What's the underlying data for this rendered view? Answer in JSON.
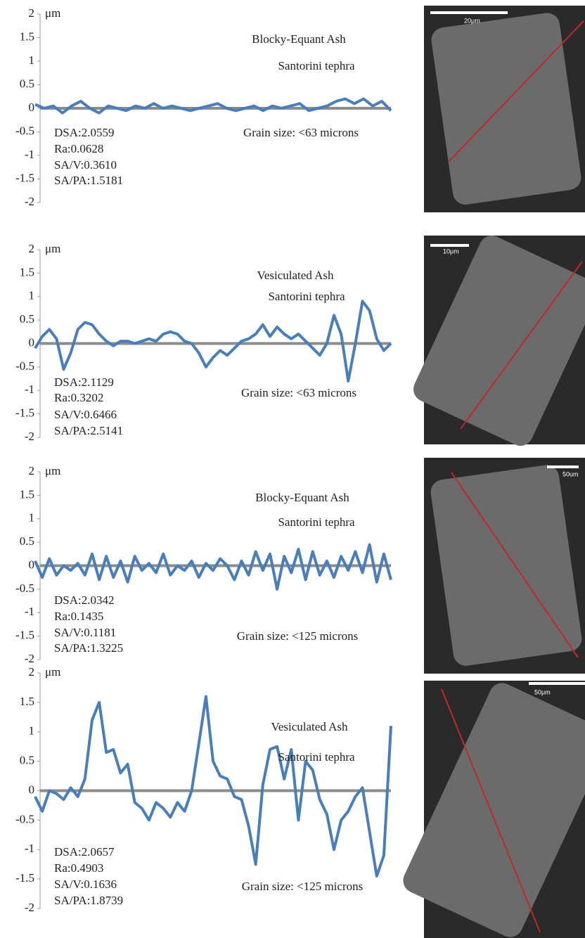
{
  "chart_data": [
    {
      "type": "line",
      "y_label": "μm",
      "title_lines": [
        "Blocky-Equant Ash",
        "Santorini tephra"
      ],
      "stats": [
        "DSA:2.0559",
        "Ra:0.0628",
        "SA/V:0.3610",
        "SA/PA:1.5181"
      ],
      "grain_size": "Grain size: <63 microns",
      "scale_label": "20μm",
      "color": "#4a7ebb",
      "ylim": [
        -2,
        2
      ],
      "yticks": [
        -2,
        -1.5,
        -1,
        -0.5,
        0,
        0.5,
        1,
        1.5,
        2
      ],
      "values": [
        0.08,
        0,
        0.05,
        -0.1,
        0.05,
        0.15,
        0,
        -0.1,
        0.05,
        0,
        -0.05,
        0.05,
        0,
        0.1,
        0,
        0.05,
        0,
        -0.05,
        0,
        0.05,
        0.1,
        0,
        -0.05,
        0,
        0.05,
        -0.05,
        0.05,
        0,
        0.05,
        0.1,
        -0.05,
        0,
        0.05,
        0.15,
        0.2,
        0.1,
        0.2,
        0.05,
        0.15,
        -0.05
      ]
    },
    {
      "type": "line",
      "y_label": "μm",
      "title_lines": [
        "Vesiculated Ash",
        "Santorini tephra"
      ],
      "stats": [
        "DSA:2.1129",
        "Ra:0.3202",
        "SA/V:0.6466",
        "SA/PA:2.5141"
      ],
      "grain_size": "Grain size: <63 microns",
      "scale_label": "10μm",
      "color": "#4a7ebb",
      "ylim": [
        -2,
        2
      ],
      "yticks": [
        -2,
        -1.5,
        -1,
        -0.5,
        0,
        0.5,
        1,
        1.5,
        2
      ],
      "values": [
        -0.1,
        0.15,
        0.3,
        0.1,
        -0.55,
        -0.2,
        0.3,
        0.45,
        0.4,
        0.2,
        0.05,
        -0.05,
        0.05,
        0.05,
        0,
        0.05,
        0.1,
        0.05,
        0.2,
        0.25,
        0.2,
        0.05,
        0,
        -0.2,
        -0.5,
        -0.3,
        -0.15,
        -0.25,
        -0.1,
        0.05,
        0.1,
        0.2,
        0.4,
        0.15,
        0.35,
        0.2,
        0.1,
        0.2,
        0.05,
        -0.1,
        -0.25,
        0,
        0.6,
        0.2,
        -0.8,
        0,
        0.9,
        0.7,
        0.1,
        -0.15,
        0
      ]
    },
    {
      "type": "line",
      "y_label": "μm",
      "title_lines": [
        "Blocky-Equant Ash",
        "Santorini tephra"
      ],
      "stats": [
        "DSA:2.0342",
        "Ra:0.1435",
        "SA/V:0.1181",
        "SA/PA:1.3225"
      ],
      "grain_size": "Grain size: <125 microns",
      "scale_label": "50um",
      "color": "#4a7ebb",
      "ylim": [
        -2,
        2
      ],
      "yticks": [
        -2,
        -1.5,
        -1,
        -0.5,
        0,
        0.5,
        1,
        1.5,
        2
      ],
      "values": [
        0.1,
        -0.25,
        0.15,
        -0.2,
        0,
        -0.1,
        0.05,
        -0.2,
        0.25,
        -0.3,
        0.2,
        -0.25,
        0.1,
        -0.35,
        0.2,
        -0.1,
        0.05,
        -0.15,
        0.25,
        -0.2,
        0,
        -0.1,
        0.1,
        -0.25,
        0.05,
        -0.1,
        0.15,
        0,
        -0.3,
        0.1,
        -0.2,
        0.3,
        -0.1,
        0.25,
        -0.5,
        0.2,
        -0.15,
        0.35,
        -0.3,
        0.3,
        -0.2,
        0.1,
        -0.25,
        0.2,
        -0.1,
        0.3,
        -0.15,
        0.45,
        -0.35,
        0.25,
        -0.3
      ]
    },
    {
      "type": "line",
      "y_label": "μm",
      "title_lines": [
        "Vesiculated Ash",
        "Santorini tephra"
      ],
      "stats": [
        "DSA:2.0657",
        "Ra:0.4903",
        "SA/V:0.1636",
        "SA/PA:1.8739"
      ],
      "grain_size": "Grain size: <125 microns",
      "scale_label": "50μm",
      "color": "#4a7ebb",
      "ylim": [
        -2,
        2
      ],
      "yticks": [
        -2,
        -1.5,
        -1,
        -0.5,
        0,
        0.5,
        1,
        1.5,
        2
      ],
      "values": [
        -0.1,
        -0.35,
        0,
        -0.05,
        -0.15,
        0.05,
        -0.1,
        0.2,
        1.2,
        1.5,
        0.65,
        0.7,
        0.3,
        0.45,
        -0.2,
        -0.3,
        -0.5,
        -0.2,
        -0.3,
        -0.45,
        -0.2,
        -0.35,
        0,
        0.8,
        1.6,
        0.5,
        0.25,
        0.2,
        -0.1,
        -0.15,
        -0.6,
        -1.25,
        0.1,
        0.7,
        0.75,
        0.2,
        0.7,
        -0.5,
        0.5,
        0.35,
        -0.15,
        -0.4,
        -1.0,
        -0.5,
        -0.35,
        -0.1,
        0.05,
        -0.7,
        -1.45,
        -1.1,
        1.1
      ]
    }
  ]
}
